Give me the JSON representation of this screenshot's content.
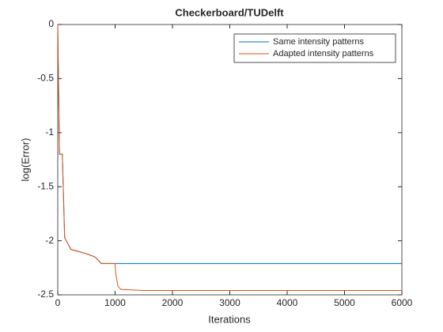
{
  "chart_data": {
    "type": "line",
    "title": "Checkerboard/TUDelft",
    "x_label": "Iterations",
    "y_label": "log(Error)",
    "x": [
      0,
      30,
      80,
      120,
      230,
      500,
      650,
      760,
      1000,
      1010,
      1050,
      1100,
      1500,
      6000
    ],
    "series": [
      {
        "name": "Same intensity patterns",
        "color": "#0072bd",
        "values": [
          0,
          -1.2,
          -1.2,
          -1.97,
          -2.08,
          -2.12,
          -2.15,
          -2.21,
          -2.21,
          -2.21,
          -2.21,
          -2.21,
          -2.21,
          -2.21
        ]
      },
      {
        "name": "Adapted intensity patterns",
        "color": "#d95319",
        "values": [
          0,
          -1.2,
          -1.2,
          -1.97,
          -2.08,
          -2.12,
          -2.15,
          -2.21,
          -2.21,
          -2.3,
          -2.42,
          -2.45,
          -2.46,
          -2.46
        ]
      }
    ],
    "xlim": [
      0,
      6000
    ],
    "xticks": [
      0,
      1000,
      2000,
      3000,
      4000,
      5000,
      6000
    ],
    "ylim": [
      -2.5,
      0
    ],
    "yticks": [
      -2.5,
      -2,
      -1.5,
      -1,
      -0.5,
      0
    ],
    "legend": "top-right",
    "grid": false
  }
}
